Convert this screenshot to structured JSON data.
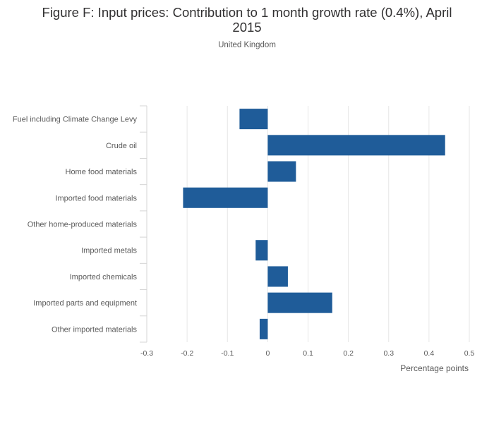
{
  "chart_data": {
    "type": "bar",
    "orientation": "horizontal",
    "title": "Figure F: Input prices: Contribution to 1 month growth rate (0.4%), April 2015",
    "subtitle": "United Kingdom",
    "xlabel": "Percentage points",
    "ylabel": "",
    "xlim": [
      -0.3,
      0.5
    ],
    "xticks": [
      "-0.3",
      "-0.2",
      "-0.1",
      "0",
      "0.1",
      "0.2",
      "0.3",
      "0.4",
      "0.5"
    ],
    "xtick_values": [
      -0.3,
      -0.2,
      -0.1,
      0,
      0.1,
      0.2,
      0.3,
      0.4,
      0.5
    ],
    "grid": true,
    "bar_color": "#1f5c99",
    "categories": [
      "Fuel including Climate Change Levy",
      "Crude oil",
      "Home food materials",
      "Imported food materials",
      "Other home-produced materials",
      "Imported metals",
      "Imported chemicals",
      "Imported parts and equipment",
      "Other imported materials"
    ],
    "values": [
      -0.07,
      0.44,
      0.07,
      -0.21,
      0.0,
      -0.03,
      0.05,
      0.16,
      -0.02
    ]
  }
}
